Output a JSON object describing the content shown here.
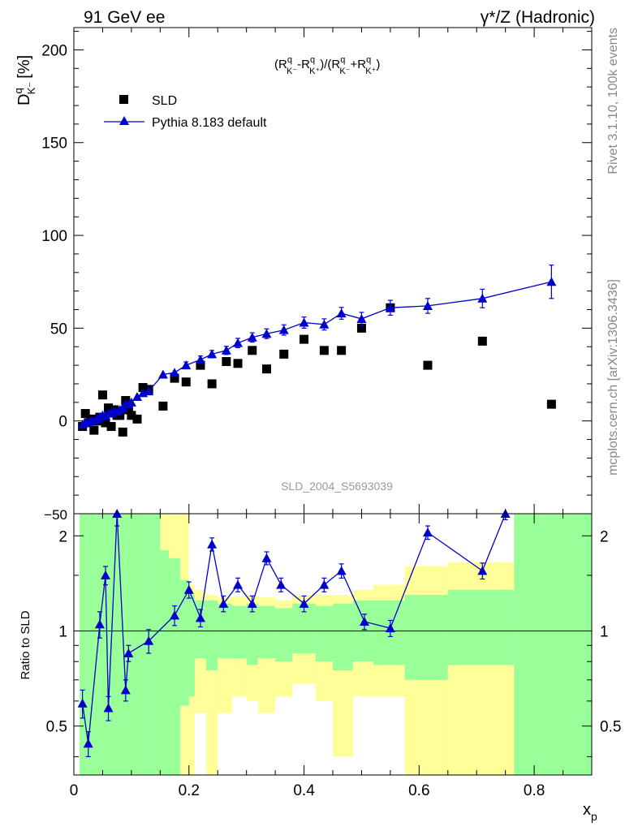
{
  "header": {
    "left": "91 GeV ee",
    "right": "γ*/Z (Hadronic)"
  },
  "side_labels": {
    "rivet": "Rivet 3.1.10,  100k events",
    "mcplots": "mcplots.cern.ch [arXiv:1306.3436]"
  },
  "analysis_id": "SLD_2004_S5693039",
  "main_panel": {
    "ylabel": "D",
    "ylabel_sup": "q",
    "ylabel_sub": "K⁻",
    "ylabel_unit": "[%]",
    "formula": {
      "p1": "(R",
      "s1": "q",
      "b1": "K⁻",
      "p2": "-R",
      "s2": "q",
      "b2": "K⁺",
      "p3": ")/(R",
      "s3": "q",
      "b3": "K⁻",
      "p4": "+R",
      "s4": "q",
      "b4": "K⁺",
      "p5": ")"
    },
    "ylim": [
      -50,
      212
    ],
    "yticks": [
      0,
      50,
      100,
      150,
      200
    ],
    "ytick_labels": [
      "0",
      "50",
      "100",
      "150",
      "200"
    ],
    "ymin_label": "−50"
  },
  "ratio_panel": {
    "ylabel": "Ratio to SLD",
    "ylim": [
      0.35,
      2.35
    ],
    "yticks": [
      0.5,
      1,
      2
    ],
    "ytick_labels": [
      "0.5",
      "1",
      "2"
    ]
  },
  "xaxis": {
    "label": "x",
    "label_sub": "p",
    "xlim": [
      0,
      0.9
    ],
    "xticks": [
      0,
      0.2,
      0.4,
      0.6,
      0.8
    ],
    "xtick_labels": [
      "0",
      "0.2",
      "0.4",
      "0.6",
      "0.8"
    ]
  },
  "legend": {
    "position": "top-left",
    "entries": [
      "SLD",
      "Pythia 8.183 default"
    ]
  },
  "chart_data": {
    "type": "scatter",
    "x": [
      0.015,
      0.02,
      0.025,
      0.03,
      0.035,
      0.04,
      0.045,
      0.05,
      0.055,
      0.06,
      0.065,
      0.07,
      0.075,
      0.08,
      0.085,
      0.09,
      0.095,
      0.1,
      0.11,
      0.12,
      0.13,
      0.155,
      0.175,
      0.195,
      0.22,
      0.24,
      0.265,
      0.285,
      0.31,
      0.335,
      0.365,
      0.4,
      0.435,
      0.465,
      0.5,
      0.55,
      0.615,
      0.71,
      0.83
    ],
    "series": [
      {
        "name": "SLD",
        "colors": "#000000",
        "values": [
          -3,
          4,
          -1,
          1,
          -5,
          0,
          2,
          14,
          -1,
          7,
          -3,
          6,
          3,
          3,
          -6,
          11,
          6,
          3,
          1,
          18,
          17,
          8,
          23,
          21,
          30,
          20,
          32,
          31,
          38,
          28,
          36,
          44,
          38,
          38,
          50,
          61,
          30,
          43,
          9
        ]
      },
      {
        "name": "Pythia 8.183 default",
        "colors": "#0000cc",
        "values": [
          -2,
          -1,
          -1,
          0,
          0,
          1,
          2,
          3,
          3,
          4,
          4,
          5,
          5,
          6,
          7,
          9,
          9,
          10,
          13,
          15,
          16,
          25,
          26,
          30,
          33,
          36,
          38,
          42,
          45,
          47,
          49,
          53,
          52,
          58,
          55,
          61,
          62,
          66,
          75
        ],
        "errors": [
          0.5,
          0.5,
          0.5,
          0.5,
          0.5,
          0.6,
          0.6,
          0.6,
          0.6,
          0.7,
          0.7,
          0.7,
          0.8,
          0.8,
          0.8,
          0.9,
          0.9,
          1.0,
          1.0,
          1.2,
          1.2,
          1.5,
          1.5,
          1.8,
          2,
          2,
          2.2,
          2.5,
          2.5,
          2.6,
          2.8,
          3,
          3,
          3.2,
          3.5,
          4,
          4,
          5,
          9
        ]
      }
    ],
    "ratio": {
      "x": [
        0.015,
        0.025,
        0.045,
        0.055,
        0.06,
        0.075,
        0.09,
        0.095,
        0.13,
        0.175,
        0.2,
        0.22,
        0.24,
        0.26,
        0.285,
        0.31,
        0.335,
        0.36,
        0.4,
        0.435,
        0.465,
        0.505,
        0.55,
        0.615,
        0.71,
        0.75
      ],
      "values": [
        0.59,
        0.44,
        1.05,
        1.5,
        0.57,
        2.35,
        0.65,
        0.85,
        0.93,
        1.12,
        1.35,
        1.1,
        1.88,
        1.22,
        1.4,
        1.22,
        1.7,
        1.4,
        1.22,
        1.4,
        1.55,
        1.07,
        1.02,
        2.05,
        1.55,
        2.35
      ],
      "errors": [
        0.06,
        0.04,
        0.1,
        0.1,
        0.05,
        0.2,
        0.05,
        0.05,
        0.08,
        0.08,
        0.08,
        0.07,
        0.09,
        0.07,
        0.07,
        0.07,
        0.08,
        0.07,
        0.07,
        0.07,
        0.08,
        0.06,
        0.06,
        0.1,
        0.09,
        0.1
      ]
    },
    "bands": {
      "bins": [
        [
          0.01,
          0.015
        ],
        [
          0.015,
          0.025
        ],
        [
          0.025,
          0.035
        ],
        [
          0.035,
          0.04
        ],
        [
          0.04,
          0.05
        ],
        [
          0.05,
          0.06
        ],
        [
          0.06,
          0.07
        ],
        [
          0.07,
          0.08
        ],
        [
          0.08,
          0.09
        ],
        [
          0.09,
          0.1
        ],
        [
          0.1,
          0.11
        ],
        [
          0.11,
          0.12
        ],
        [
          0.12,
          0.13
        ],
        [
          0.13,
          0.15
        ],
        [
          0.15,
          0.165
        ],
        [
          0.165,
          0.185
        ],
        [
          0.185,
          0.2
        ],
        [
          0.2,
          0.21
        ],
        [
          0.21,
          0.23
        ],
        [
          0.23,
          0.25
        ],
        [
          0.25,
          0.275
        ],
        [
          0.275,
          0.3
        ],
        [
          0.3,
          0.32
        ],
        [
          0.32,
          0.35
        ],
        [
          0.35,
          0.38
        ],
        [
          0.38,
          0.42
        ],
        [
          0.42,
          0.45
        ],
        [
          0.45,
          0.485
        ],
        [
          0.485,
          0.52
        ],
        [
          0.52,
          0.575
        ],
        [
          0.575,
          0.65
        ],
        [
          0.65,
          0.765
        ],
        [
          0.765,
          0.9
        ]
      ],
      "inner_low": [
        0.35,
        0.35,
        0.35,
        0.35,
        0.35,
        0.35,
        0.35,
        0.35,
        0.35,
        0.35,
        0.35,
        0.35,
        0.35,
        0.35,
        0.35,
        0.35,
        0.58,
        0.62,
        0.82,
        0.75,
        0.82,
        0.82,
        0.78,
        0.82,
        0.8,
        0.85,
        0.8,
        0.75,
        0.8,
        0.78,
        0.7,
        0.78,
        0.35
      ],
      "inner_high": [
        2.35,
        2.35,
        2.35,
        2.35,
        2.35,
        2.35,
        2.35,
        2.35,
        2.35,
        2.35,
        2.35,
        2.35,
        2.35,
        2.35,
        1.8,
        1.7,
        1.45,
        1.3,
        1.25,
        1.25,
        1.22,
        1.2,
        1.22,
        1.2,
        1.18,
        1.22,
        1.2,
        1.22,
        1.25,
        1.25,
        1.3,
        1.35,
        2.35
      ],
      "outer_low": [
        0.35,
        0.35,
        0.35,
        0.35,
        0.35,
        0.35,
        0.35,
        0.35,
        0.35,
        0.35,
        0.35,
        0.35,
        0.35,
        0.35,
        0.35,
        0.35,
        0.35,
        0.35,
        0.55,
        0.35,
        0.55,
        0.62,
        0.6,
        0.55,
        0.62,
        0.68,
        0.6,
        0.4,
        0.62,
        0.62,
        0.35,
        0.35,
        0.35
      ],
      "outer_high": [
        2.35,
        2.35,
        2.35,
        2.35,
        2.35,
        2.35,
        2.35,
        2.35,
        2.35,
        2.35,
        2.35,
        2.35,
        2.35,
        2.35,
        2.35,
        2.35,
        2.35,
        1.4,
        1.35,
        1.3,
        1.28,
        1.28,
        1.3,
        1.28,
        1.25,
        1.3,
        1.3,
        1.3,
        1.35,
        1.4,
        1.6,
        1.65,
        2.35
      ],
      "inner_color": "#99ff99",
      "outer_color": "#ffff99"
    }
  }
}
